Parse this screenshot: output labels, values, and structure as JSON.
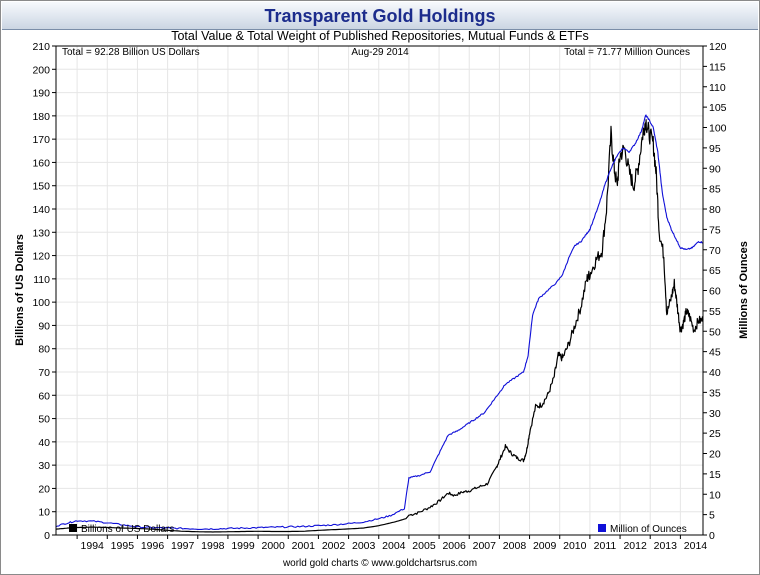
{
  "header": {
    "title": "Transparent Gold Holdings",
    "subtitle": "Total Value & Total Weight of Published Repositories, Mutual Funds & ETFs"
  },
  "info": {
    "total_value": "Total = 92.28 Billion US Dollars",
    "date": "Aug-29  2014",
    "total_weight": "Total = 71.77 Million Ounces"
  },
  "footer": {
    "text": "world gold charts © www.goldchartsrus.com"
  },
  "colors": {
    "value_series": "#000000",
    "ounces_series": "#1010d8",
    "grid": "#e6e6e6"
  },
  "chart_data": {
    "type": "line",
    "title": "Transparent Gold Holdings",
    "subtitle": "Total Value & Total Weight of Published Repositories, Mutual Funds & ETFs",
    "xlabel": "",
    "x_tick_labels": [
      "1994",
      "1995",
      "1996",
      "1997",
      "1998",
      "1999",
      "2000",
      "2001",
      "2002",
      "2003",
      "2004",
      "2005",
      "2006",
      "2007",
      "2008",
      "2009",
      "2010",
      "2011",
      "2012",
      "2013",
      "2014"
    ],
    "xlim": [
      1993.3,
      2014.75
    ],
    "y_left": {
      "label": "Billions of US Dollars",
      "range": [
        0,
        210
      ],
      "step": 10
    },
    "y_right": {
      "label": "Millions of Ounces",
      "range": [
        0,
        120
      ],
      "step": 5
    },
    "legend": {
      "left": "Billions of US Dollars",
      "right": "Million of Ounces"
    },
    "grid": true,
    "series": [
      {
        "name": "Billions of US Dollars",
        "axis": "left",
        "color": "#000000",
        "points": [
          [
            1993.3,
            2.5
          ],
          [
            1993.7,
            3.0
          ],
          [
            1994.0,
            3.2
          ],
          [
            1994.5,
            3.4
          ],
          [
            1995.0,
            3.2
          ],
          [
            1995.5,
            3.0
          ],
          [
            1996.0,
            2.8
          ],
          [
            1996.5,
            2.5
          ],
          [
            1997.0,
            2.0
          ],
          [
            1997.5,
            1.6
          ],
          [
            1998.0,
            1.4
          ],
          [
            1998.5,
            1.3
          ],
          [
            1999.0,
            1.4
          ],
          [
            1999.5,
            1.5
          ],
          [
            2000.0,
            1.6
          ],
          [
            2000.5,
            1.5
          ],
          [
            2001.0,
            1.5
          ],
          [
            2001.5,
            1.6
          ],
          [
            2002.0,
            2.0
          ],
          [
            2002.5,
            2.3
          ],
          [
            2003.0,
            2.6
          ],
          [
            2003.5,
            3.0
          ],
          [
            2004.0,
            4.0
          ],
          [
            2004.5,
            5.5
          ],
          [
            2004.9,
            7.0
          ],
          [
            2005.0,
            8.5
          ],
          [
            2005.3,
            9.5
          ],
          [
            2005.7,
            12.0
          ],
          [
            2006.0,
            14.5
          ],
          [
            2006.3,
            18.0
          ],
          [
            2006.5,
            17.0
          ],
          [
            2006.8,
            18.5
          ],
          [
            2007.0,
            19.0
          ],
          [
            2007.3,
            20.5
          ],
          [
            2007.6,
            22.0
          ],
          [
            2007.9,
            29.0
          ],
          [
            2008.0,
            32.0
          ],
          [
            2008.2,
            38.0
          ],
          [
            2008.4,
            35.0
          ],
          [
            2008.6,
            33.0
          ],
          [
            2008.8,
            32.0
          ],
          [
            2008.9,
            36.0
          ],
          [
            2009.0,
            44.0
          ],
          [
            2009.2,
            55.0
          ],
          [
            2009.4,
            56.0
          ],
          [
            2009.6,
            60.0
          ],
          [
            2009.8,
            67.0
          ],
          [
            2009.95,
            77.0
          ],
          [
            2010.1,
            76.0
          ],
          [
            2010.3,
            82.0
          ],
          [
            2010.5,
            90.0
          ],
          [
            2010.7,
            98.0
          ],
          [
            2010.9,
            110.0
          ],
          [
            2011.0,
            112.0
          ],
          [
            2011.2,
            118.0
          ],
          [
            2011.4,
            122.0
          ],
          [
            2011.55,
            140.0
          ],
          [
            2011.7,
            172.0
          ],
          [
            2011.8,
            158.0
          ],
          [
            2011.9,
            150.0
          ],
          [
            2012.0,
            163.0
          ],
          [
            2012.15,
            166.0
          ],
          [
            2012.3,
            156.0
          ],
          [
            2012.45,
            150.0
          ],
          [
            2012.6,
            158.0
          ],
          [
            2012.75,
            172.0
          ],
          [
            2012.85,
            178.0
          ],
          [
            2012.95,
            173.0
          ],
          [
            2013.1,
            168.0
          ],
          [
            2013.2,
            155.0
          ],
          [
            2013.3,
            130.0
          ],
          [
            2013.45,
            120.0
          ],
          [
            2013.55,
            95.0
          ],
          [
            2013.7,
            102.0
          ],
          [
            2013.8,
            108.0
          ],
          [
            2013.9,
            98.0
          ],
          [
            2014.0,
            88.0
          ],
          [
            2014.1,
            91.0
          ],
          [
            2014.2,
            96.0
          ],
          [
            2014.3,
            94.0
          ],
          [
            2014.45,
            88.0
          ],
          [
            2014.6,
            92.0
          ],
          [
            2014.75,
            92.3
          ]
        ]
      },
      {
        "name": "Million of Ounces",
        "axis": "right",
        "color": "#1010d8",
        "points": [
          [
            1993.3,
            2.2
          ],
          [
            1993.7,
            3.0
          ],
          [
            1994.0,
            3.5
          ],
          [
            1994.5,
            3.4
          ],
          [
            1995.0,
            3.0
          ],
          [
            1995.5,
            2.5
          ],
          [
            1996.0,
            2.0
          ],
          [
            1996.5,
            1.8
          ],
          [
            1997.0,
            1.7
          ],
          [
            1997.5,
            1.6
          ],
          [
            1998.0,
            1.5
          ],
          [
            1998.5,
            1.5
          ],
          [
            1999.0,
            1.6
          ],
          [
            1999.5,
            1.7
          ],
          [
            2000.0,
            1.8
          ],
          [
            2000.5,
            1.9
          ],
          [
            2001.0,
            2.0
          ],
          [
            2001.5,
            2.1
          ],
          [
            2002.0,
            2.3
          ],
          [
            2002.5,
            2.5
          ],
          [
            2003.0,
            2.8
          ],
          [
            2003.5,
            3.2
          ],
          [
            2004.0,
            4.0
          ],
          [
            2004.4,
            4.8
          ],
          [
            2004.85,
            6.5
          ],
          [
            2005.0,
            14.0
          ],
          [
            2005.3,
            14.5
          ],
          [
            2005.7,
            15.5
          ],
          [
            2006.0,
            20.0
          ],
          [
            2006.3,
            24.5
          ],
          [
            2006.6,
            25.5
          ],
          [
            2006.9,
            27.0
          ],
          [
            2007.2,
            28.5
          ],
          [
            2007.5,
            30.0
          ],
          [
            2007.8,
            33.0
          ],
          [
            2008.0,
            35.0
          ],
          [
            2008.2,
            37.0
          ],
          [
            2008.5,
            38.5
          ],
          [
            2008.8,
            40.0
          ],
          [
            2008.95,
            44.0
          ],
          [
            2009.1,
            54.0
          ],
          [
            2009.3,
            58.0
          ],
          [
            2009.6,
            60.0
          ],
          [
            2009.9,
            62.0
          ],
          [
            2010.1,
            64.0
          ],
          [
            2010.3,
            68.0
          ],
          [
            2010.5,
            71.0
          ],
          [
            2010.7,
            72.0
          ],
          [
            2010.9,
            74.0
          ],
          [
            2011.0,
            75.0
          ],
          [
            2011.3,
            81.0
          ],
          [
            2011.5,
            86.0
          ],
          [
            2011.7,
            90.0
          ],
          [
            2011.9,
            93.0
          ],
          [
            2012.1,
            95.0
          ],
          [
            2012.3,
            94.0
          ],
          [
            2012.5,
            96.0
          ],
          [
            2012.7,
            99.0
          ],
          [
            2012.85,
            103.0
          ],
          [
            2012.95,
            102.0
          ],
          [
            2013.1,
            100.0
          ],
          [
            2013.25,
            94.0
          ],
          [
            2013.4,
            84.0
          ],
          [
            2013.55,
            78.0
          ],
          [
            2013.7,
            75.0
          ],
          [
            2013.9,
            72.0
          ],
          [
            2014.0,
            70.5
          ],
          [
            2014.2,
            70.0
          ],
          [
            2014.4,
            70.5
          ],
          [
            2014.6,
            72.0
          ],
          [
            2014.75,
            71.77
          ]
        ]
      }
    ]
  }
}
